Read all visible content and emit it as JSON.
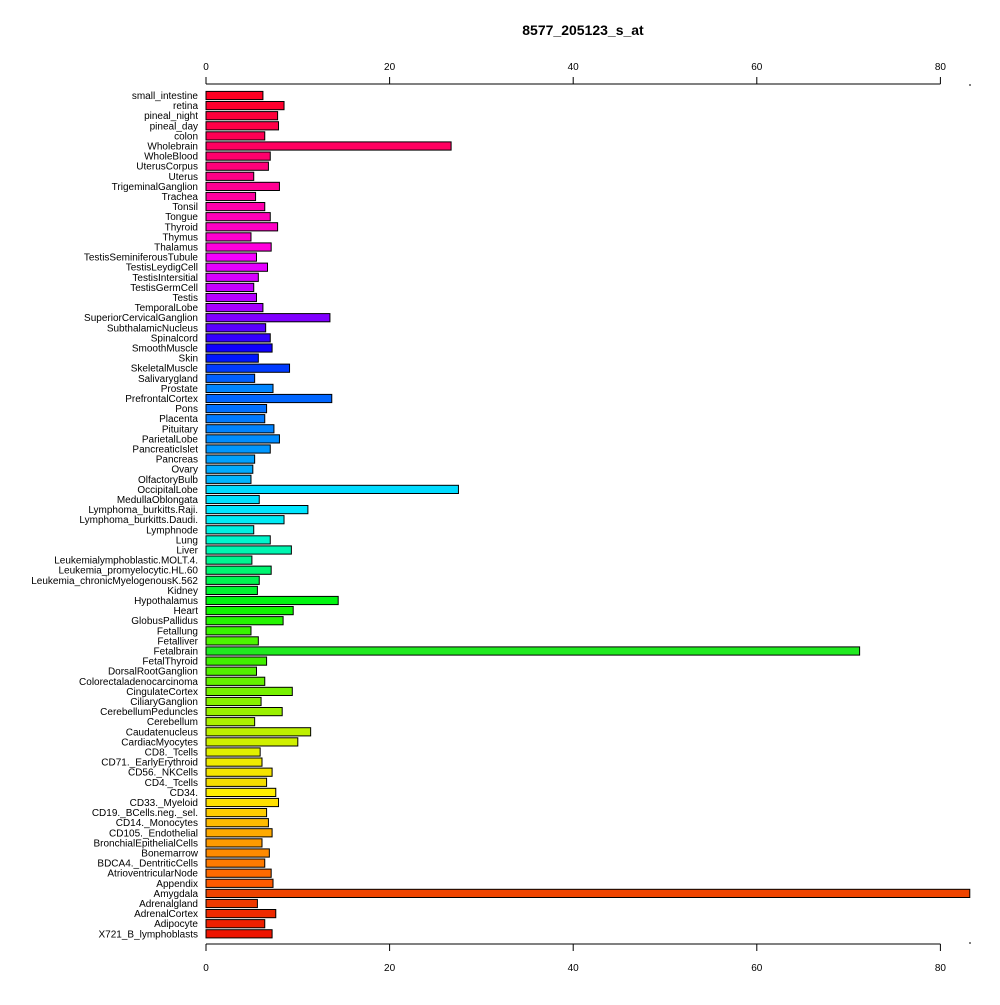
{
  "chart_data": {
    "type": "bar",
    "orientation": "horizontal",
    "title": "8577_205123_s_at",
    "xlabel": "",
    "ylabel": "",
    "xlim": [
      0,
      83
    ],
    "xticks": [
      0,
      20,
      40,
      60,
      80
    ],
    "xtick_labels": [
      "0",
      "20",
      "40",
      "60",
      "80"
    ],
    "grid": false,
    "legend": "none",
    "axes": [
      "top",
      "bottom"
    ],
    "categories": [
      "small_intestine",
      "retina",
      "pineal_night",
      "pineal_day",
      "colon",
      "Wholebrain",
      "WholeBlood",
      "UterusCorpus",
      "Uterus",
      "TrigeminalGanglion",
      "Trachea",
      "Tonsil",
      "Tongue",
      "Thyroid",
      "Thymus",
      "Thalamus",
      "TestisSeminiferousTubule",
      "TestisLeydigCell",
      "TestisIntersitial",
      "TestisGermCell",
      "Testis",
      "TemporalLobe",
      "SuperiorCervicalGanglion",
      "SubthalamicNucleus",
      "Spinalcord",
      "SmoothMuscle",
      "Skin",
      "SkeletalMuscle",
      "Salivarygland",
      "Prostate",
      "PrefrontalCortex",
      "Pons",
      "Placenta",
      "Pituitary",
      "ParietalLobe",
      "PancreaticIslet",
      "Pancreas",
      "Ovary",
      "OlfactoryBulb",
      "OccipitalLobe",
      "MedullaOblongata",
      "Lymphoma_burkitts.Raji.",
      "Lymphoma_burkitts.Daudi.",
      "Lymphnode",
      "Lung",
      "Liver",
      "Leukemialymphoblastic.MOLT.4.",
      "Leukemia_promyelocytic.HL.60",
      "Leukemia_chronicMyelogenousK.562",
      "Kidney",
      "Hypothalamus",
      "Heart",
      "GlobusPallidus",
      "Fetallung",
      "Fetalliver",
      "Fetalbrain",
      "FetalThyroid",
      "DorsalRootGanglion",
      "Colorectaladenocarcinoma",
      "CingulateCortex",
      "CiliaryGanglion",
      "CerebellumPeduncles",
      "Cerebellum",
      "Caudatenucleus",
      "CardiacMyocytes",
      "CD8._Tcells",
      "CD71._EarlyErythroid",
      "CD56._NKCells",
      "CD4._Tcells",
      "CD34.",
      "CD33._Myeloid",
      "CD19._BCells.neg._sel.",
      "CD14._Monocytes",
      "CD105._Endothelial",
      "BronchialEpithelialCells",
      "Bonemarrow",
      "BDCA4._DentriticCells",
      "AtrioventricularNode",
      "Appendix",
      "Amygdala",
      "Adrenalgland",
      "AdrenalCortex",
      "Adipocyte",
      "X721_B_lymphoblasts"
    ],
    "values": [
      6.2,
      8.5,
      7.8,
      7.9,
      6.4,
      26.7,
      7.0,
      6.8,
      5.2,
      8.0,
      5.4,
      6.4,
      7.0,
      7.8,
      4.9,
      7.1,
      5.5,
      6.7,
      5.7,
      5.2,
      5.5,
      6.2,
      13.5,
      6.5,
      7.0,
      7.2,
      5.7,
      9.1,
      5.3,
      7.3,
      13.7,
      6.6,
      6.4,
      7.4,
      8.0,
      7.0,
      5.3,
      5.1,
      4.9,
      27.5,
      5.8,
      11.1,
      8.5,
      5.2,
      7.0,
      9.3,
      5.0,
      7.1,
      5.8,
      5.6,
      14.4,
      9.5,
      8.4,
      4.9,
      5.7,
      71.2,
      6.6,
      5.5,
      6.4,
      9.4,
      6.0,
      8.3,
      5.3,
      11.4,
      10.0,
      5.9,
      6.1,
      7.2,
      6.6,
      7.6,
      7.9,
      6.6,
      6.8,
      7.2,
      6.1,
      6.9,
      6.4,
      7.1,
      7.3,
      83.2,
      5.6,
      7.6,
      6.4,
      7.2
    ],
    "colors": [
      "#ff0022",
      "#ff002e",
      "#ff003b",
      "#ff0047",
      "#ff0054",
      "#ff0060",
      "#ff006c",
      "#ff0079",
      "#ff0085",
      "#ff0092",
      "#ff009e",
      "#ff00ab",
      "#ff00b7",
      "#ff00c4",
      "#ff00d0",
      "#ff00dc",
      "#f500ff",
      "#e500ff",
      "#d600ff",
      "#c600ff",
      "#b600ff",
      "#a600ff",
      "#8000ff",
      "#5a00ff",
      "#3400ff",
      "#0f00ff",
      "#0017ff",
      "#003bff",
      "#0060ff",
      "#0085ff",
      "#0066ff",
      "#0070ff",
      "#007aff",
      "#0083ff",
      "#008dff",
      "#0097ff",
      "#00a1ff",
      "#00abff",
      "#00b5ff",
      "#00dbff",
      "#00e1ff",
      "#00e6ff",
      "#00ebf5",
      "#00f0e1",
      "#00f5cc",
      "#00f5b0",
      "#00f590",
      "#00f570",
      "#00f550",
      "#00f530",
      "#00f510",
      "#10f500",
      "#24f500",
      "#38f500",
      "#4cf500",
      "#20ea20",
      "#40f000",
      "#52f000",
      "#64f000",
      "#76f000",
      "#88f000",
      "#9af000",
      "#acf000",
      "#bef000",
      "#d0f000",
      "#e2f000",
      "#f0ea00",
      "#f5e400",
      "#f5dd00",
      "#ffee00",
      "#ffe000",
      "#ffcc00",
      "#ffbb00",
      "#ffaa00",
      "#ff9a00",
      "#ff8a00",
      "#ff7a00",
      "#ff6a00",
      "#ff5a00",
      "#ee4400",
      "#ee3a00",
      "#ee2a00",
      "#ee2000",
      "#ee1400"
    ]
  }
}
